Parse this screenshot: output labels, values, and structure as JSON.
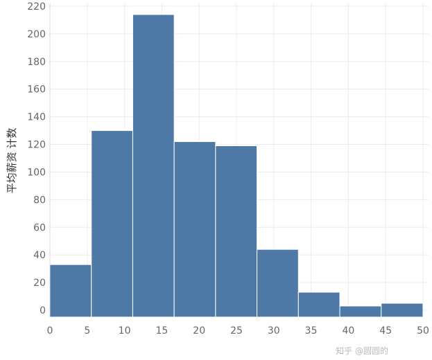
{
  "chart_data": {
    "type": "bar",
    "title": "",
    "xlabel": "",
    "ylabel": "平均薪资 计数",
    "xlim": [
      0,
      50
    ],
    "ylim": [
      -5,
      222
    ],
    "x_ticks": [
      0,
      5,
      10,
      15,
      20,
      25,
      30,
      35,
      40,
      45,
      50
    ],
    "y_ticks": [
      0,
      20,
      40,
      60,
      80,
      100,
      120,
      140,
      160,
      180,
      200,
      220
    ],
    "bin_edges": [
      0,
      5.55,
      11.1,
      16.65,
      22.2,
      27.75,
      33.3,
      38.85,
      44.4,
      50
    ],
    "values": [
      33,
      130,
      214,
      122,
      119,
      44,
      13,
      3,
      5
    ],
    "grid": true,
    "bar_color": "#4e79a7"
  },
  "watermark": {
    "text": "知乎 @圆圆的"
  }
}
